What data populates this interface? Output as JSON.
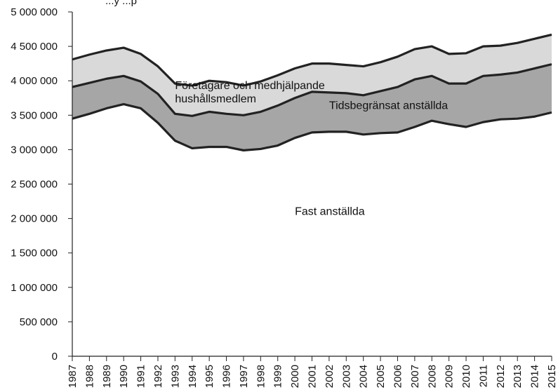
{
  "header_text": "...y ...p",
  "chart_data": {
    "type": "area",
    "stacked": true,
    "title": "",
    "xlabel": "",
    "ylabel": "",
    "ylim": [
      0,
      5000000
    ],
    "yticks": [
      0,
      500000,
      1000000,
      1500000,
      2000000,
      2500000,
      3000000,
      3500000,
      4000000,
      4500000,
      5000000
    ],
    "ytick_labels": [
      "0",
      "500 000",
      "1 000 000",
      "1 500 000",
      "2 000 000",
      "2 500 000",
      "3 000 000",
      "3 500 000",
      "4 000 000",
      "4 500 000",
      "5 000 000"
    ],
    "grid": false,
    "categories": [
      "1987",
      "1988",
      "1989",
      "1990",
      "1991",
      "1992",
      "1993",
      "1994",
      "1995",
      "1996",
      "1997",
      "1998",
      "1999",
      "2000",
      "2001",
      "2002",
      "2003",
      "2004",
      "2005",
      "2006",
      "2007",
      "2008",
      "2009",
      "2010",
      "2011",
      "2012",
      "2013",
      "2014",
      "2015"
    ],
    "series": [
      {
        "name": "Fast anställda",
        "color": "#ffffff",
        "values": [
          3450000,
          3520000,
          3600000,
          3660000,
          3600000,
          3390000,
          3130000,
          3020000,
          3040000,
          3040000,
          2990000,
          3010000,
          3060000,
          3170000,
          3250000,
          3260000,
          3260000,
          3220000,
          3240000,
          3250000,
          3330000,
          3420000,
          3370000,
          3330000,
          3400000,
          3440000,
          3450000,
          3480000,
          3540000
        ]
      },
      {
        "name": "Tidsbegränsat anställda",
        "color": "#a6a6a6",
        "values": [
          460000,
          450000,
          430000,
          410000,
          390000,
          420000,
          390000,
          470000,
          510000,
          480000,
          510000,
          540000,
          580000,
          580000,
          590000,
          570000,
          560000,
          570000,
          610000,
          660000,
          690000,
          650000,
          590000,
          630000,
          670000,
          650000,
          670000,
          700000,
          700000
        ]
      },
      {
        "name": "Företagare och medhjälpande hushållsmedlem",
        "color": "#d9d9d9",
        "values": [
          400000,
          410000,
          410000,
          410000,
          400000,
          400000,
          440000,
          440000,
          450000,
          460000,
          430000,
          440000,
          440000,
          430000,
          410000,
          420000,
          410000,
          420000,
          420000,
          440000,
          440000,
          430000,
          430000,
          440000,
          430000,
          420000,
          430000,
          430000,
          430000
        ]
      }
    ],
    "annotations": [
      {
        "series": "Företagare och medhjälpande hushållsmedlem",
        "lines": [
          "Företagare och medhjälpande",
          "hushållsmedlem"
        ],
        "at_year": "1993",
        "at_value": 3880000
      },
      {
        "series": "Tidsbegränsat anställda",
        "lines": [
          "Tidsbegränsat anställda"
        ],
        "at_year": "2002",
        "at_value": 3590000
      },
      {
        "series": "Fast anställda",
        "lines": [
          "Fast anställda"
        ],
        "at_year": "2000",
        "at_value": 2050000
      }
    ]
  }
}
